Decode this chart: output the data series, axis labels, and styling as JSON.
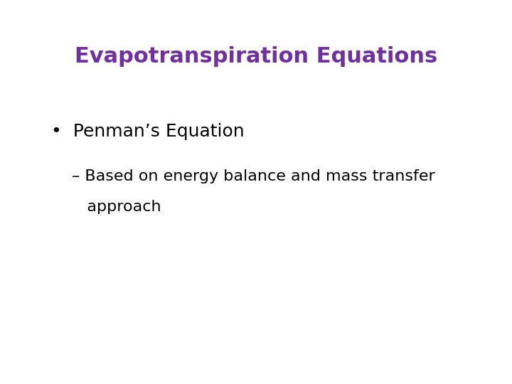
{
  "title": "Evapotranspiration Equations",
  "title_color": "#7030A0",
  "title_fontsize": 22,
  "title_bold": true,
  "bullet_text": "•  Penman’s Equation",
  "bullet_fontsize": 18,
  "bullet_color": "#000000",
  "sub_line1": "– Based on energy balance and mass transfer",
  "sub_line2": "   approach",
  "sub_bullet_fontsize": 16,
  "sub_bullet_color": "#000000",
  "background_color": "#ffffff",
  "figsize": [
    7.2,
    5.4
  ],
  "dpi": 100
}
